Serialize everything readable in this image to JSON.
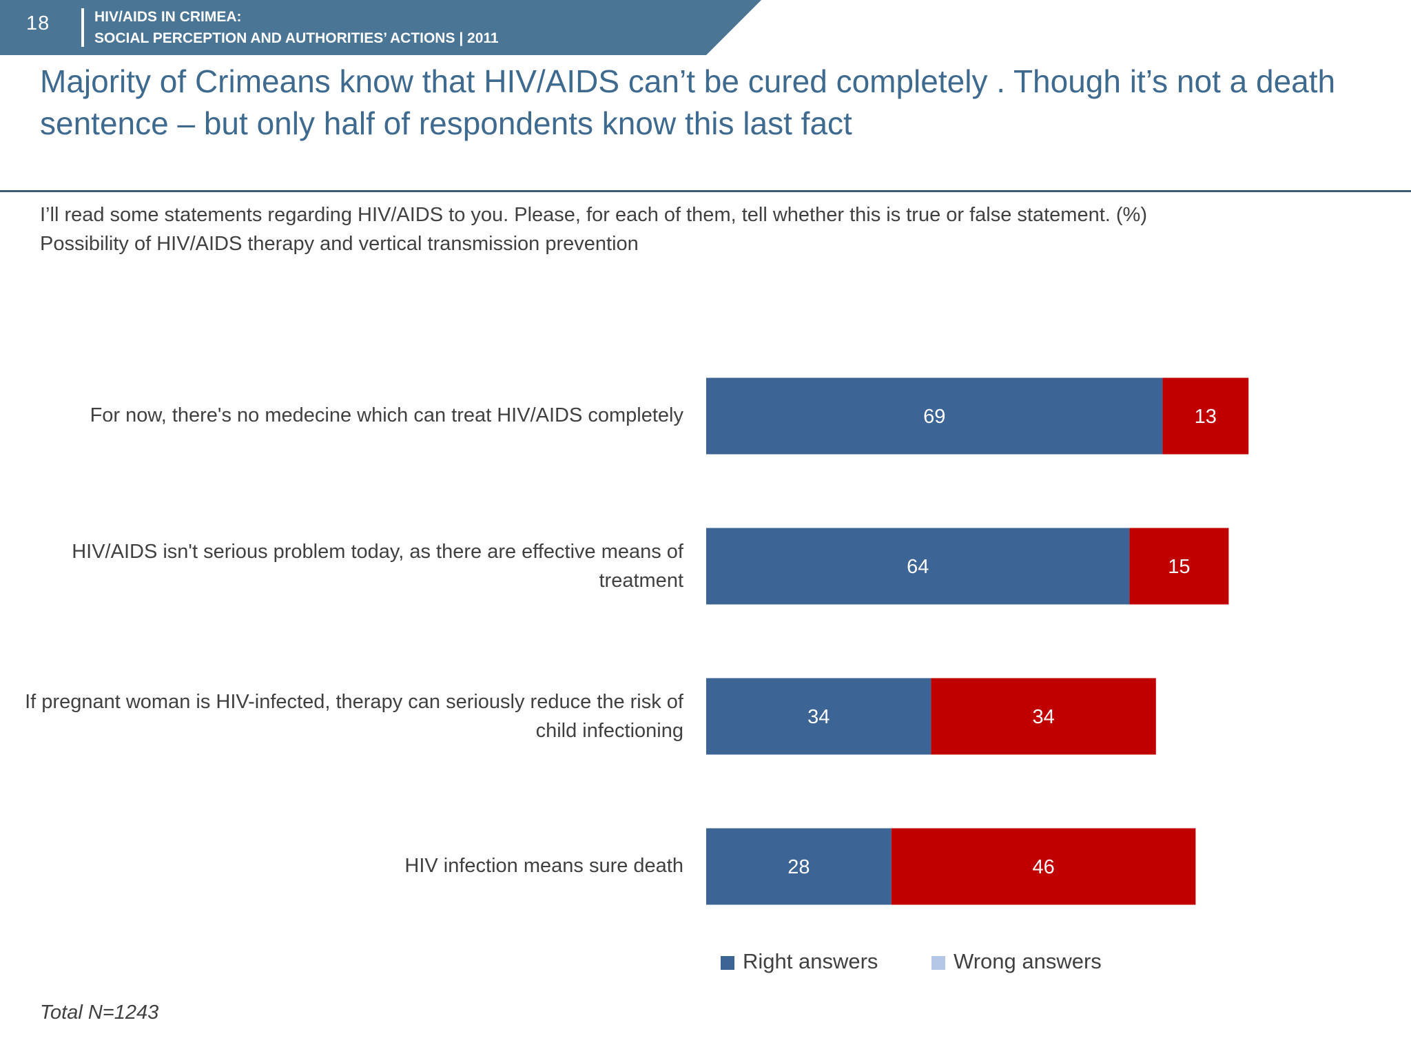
{
  "header": {
    "page_number": "18",
    "line1": "HIV/AIDS IN CRIMEA:",
    "line2": "SOCIAL PERCEPTION AND AUTHORITIES’ ACTIONS  |  2011"
  },
  "title": "Majority of Crimeans know that HIV/AIDS can’t be cured completely . Though it’s not a death sentence – but only half of respondents know this last fact",
  "question": "I’ll read some statements regarding HIV/AIDS to you. Please, for each of them, tell whether this is true or false statement. (%)",
  "subtitle": "Possibility of HIV/AIDS therapy and vertical transmission prevention",
  "colors": {
    "header_band": "#4a7595",
    "right_answers": "#3c6494",
    "wrong_answers": "#c00000",
    "wrong_legend_swatch": "#b4c7e7"
  },
  "chart_data": {
    "type": "bar",
    "orientation": "horizontal",
    "stacked": true,
    "categories": [
      "For now, there's no medecine which can treat HIV/AIDS completely",
      "HIV/AIDS isn't serious problem today, as there are effective means of treatment",
      "If pregnant woman is HIV-infected, therapy can seriously reduce the risk of child infectioning",
      "HIV infection means sure death"
    ],
    "series": [
      {
        "name": "Right answers",
        "values": [
          69,
          64,
          34,
          28
        ]
      },
      {
        "name": "Wrong answers",
        "values": [
          13,
          15,
          34,
          46
        ]
      }
    ],
    "xlim": [
      0,
      100
    ],
    "grid": false,
    "legend": "bottom"
  },
  "legend": {
    "right": "Right answers",
    "wrong": "Wrong answers"
  },
  "footnote": "Total N=1243"
}
